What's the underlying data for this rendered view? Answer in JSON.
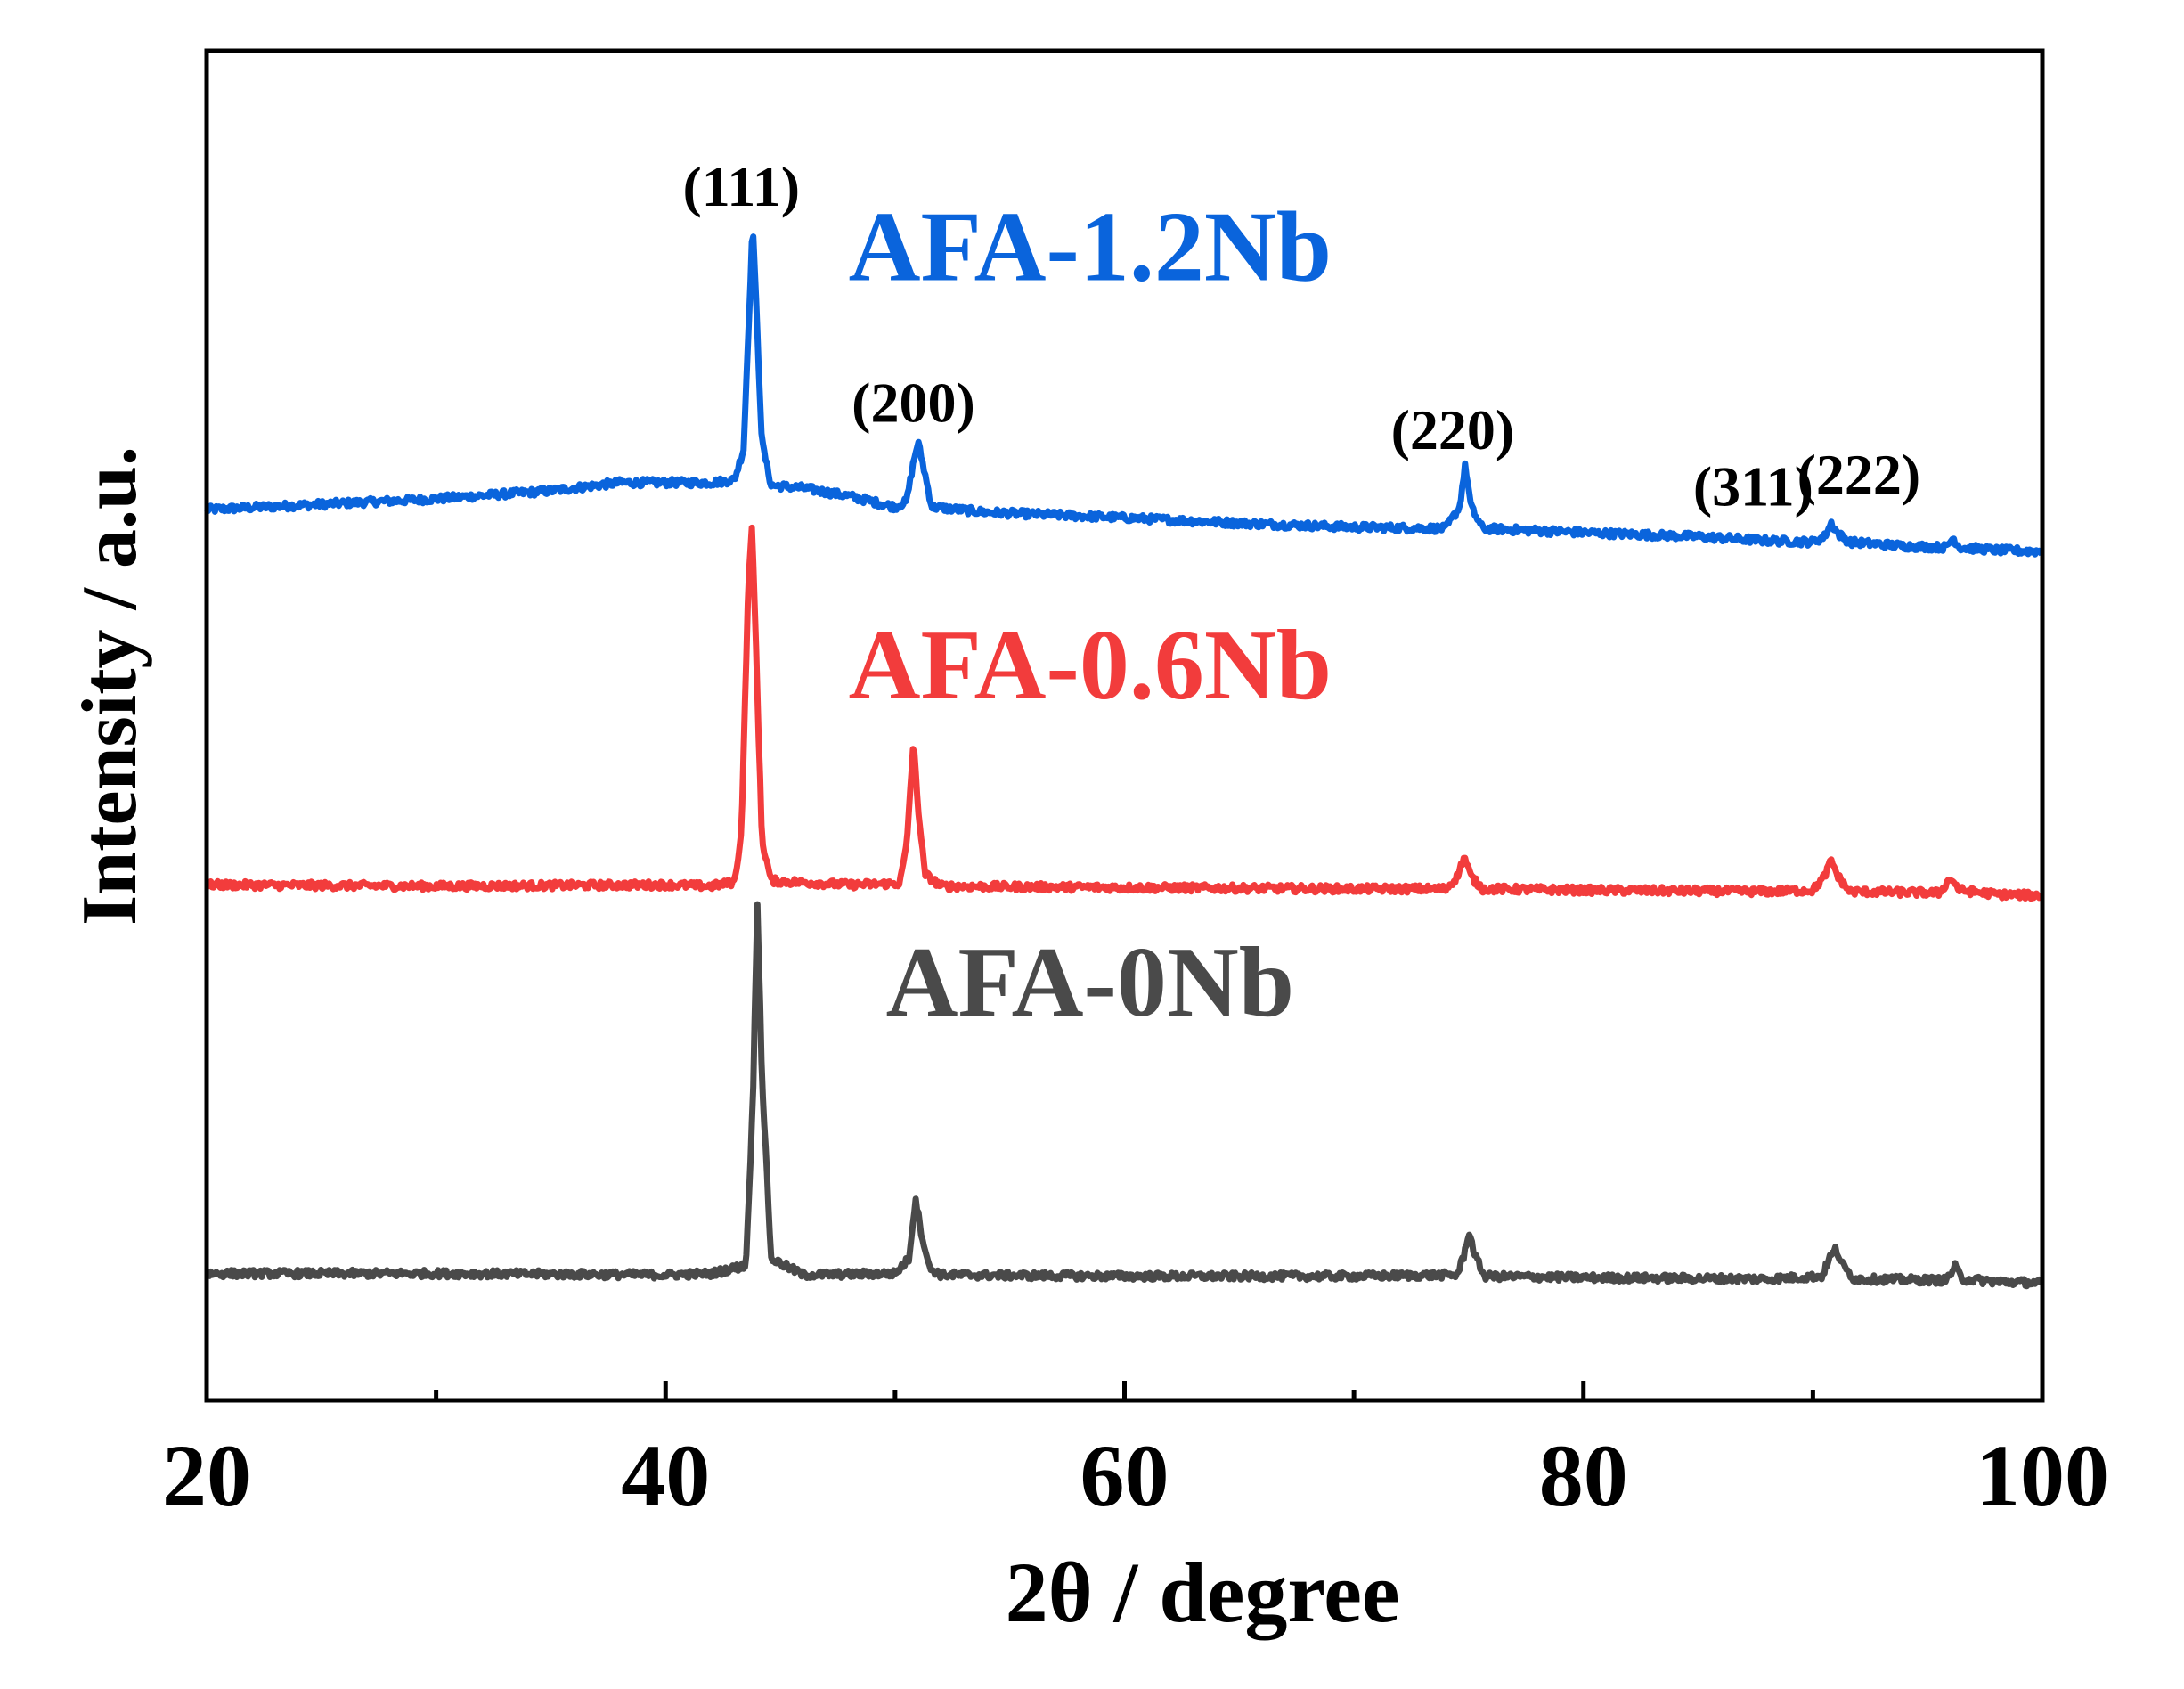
{
  "chart_data": {
    "type": "line",
    "title": "",
    "xlabel": "2θ / degree",
    "ylabel": "Intensity / a.u.",
    "xlim": [
      20,
      100
    ],
    "ylim": [
      0,
      100
    ],
    "x_ticks_major": [
      20,
      40,
      60,
      80,
      100
    ],
    "x_ticks_minor": [
      30,
      50,
      70,
      90
    ],
    "x_tick_labels": [
      "20",
      "40",
      "60",
      "80",
      "100"
    ],
    "y_ticks_shown": false,
    "grid": false,
    "legend": "inline labels",
    "series": [
      {
        "name": "AFA-1.2Nb",
        "color": "#0a64dc",
        "label_position": [
          58.5,
          83
        ],
        "points": [
          [
            20,
            66.0
          ],
          [
            25,
            66.4
          ],
          [
            30,
            66.8
          ],
          [
            35,
            67.4
          ],
          [
            38,
            68.0
          ],
          [
            40,
            68.0
          ],
          [
            42,
            68.0
          ],
          [
            43,
            68.2
          ],
          [
            43.4,
            70.5
          ],
          [
            43.65,
            81.0
          ],
          [
            43.8,
            87.3
          ],
          [
            43.95,
            81.0
          ],
          [
            44.2,
            71.0
          ],
          [
            44.6,
            67.8
          ],
          [
            46,
            67.6
          ],
          [
            48,
            67.0
          ],
          [
            50,
            66.2
          ],
          [
            50.5,
            66.6
          ],
          [
            50.8,
            69.5
          ],
          [
            51.0,
            71.0
          ],
          [
            51.2,
            69.5
          ],
          [
            51.6,
            66.2
          ],
          [
            54,
            65.8
          ],
          [
            60,
            65.4
          ],
          [
            65,
            65.0
          ],
          [
            70,
            64.7
          ],
          [
            74,
            64.6
          ],
          [
            74.6,
            66.2
          ],
          [
            74.85,
            69.3
          ],
          [
            75.1,
            66.2
          ],
          [
            75.6,
            64.6
          ],
          [
            80,
            64.3
          ],
          [
            85,
            64.0
          ],
          [
            88,
            63.7
          ],
          [
            90,
            63.6
          ],
          [
            90.5,
            64.0
          ],
          [
            90.8,
            65.0
          ],
          [
            91.1,
            64.2
          ],
          [
            91.6,
            63.6
          ],
          [
            94,
            63.3
          ],
          [
            95.8,
            63.2
          ],
          [
            96.1,
            63.9
          ],
          [
            96.4,
            63.2
          ],
          [
            98,
            63.0
          ],
          [
            100,
            62.9
          ]
        ]
      },
      {
        "name": "AFA-0.6Nb",
        "color": "#f23c3c",
        "label_position": [
          58.5,
          52
        ],
        "points": [
          [
            20,
            38.2
          ],
          [
            30,
            38.1
          ],
          [
            40,
            38.2
          ],
          [
            42,
            38.1
          ],
          [
            43,
            38.4
          ],
          [
            43.3,
            42.0
          ],
          [
            43.6,
            60.0
          ],
          [
            43.75,
            65.0
          ],
          [
            43.9,
            58.0
          ],
          [
            44.2,
            41.5
          ],
          [
            44.6,
            38.5
          ],
          [
            48,
            38.2
          ],
          [
            50.2,
            38.3
          ],
          [
            50.5,
            41.0
          ],
          [
            50.8,
            48.8
          ],
          [
            51.0,
            44.0
          ],
          [
            51.3,
            39.0
          ],
          [
            52,
            38.1
          ],
          [
            60,
            38.0
          ],
          [
            70,
            37.9
          ],
          [
            74,
            37.9
          ],
          [
            74.5,
            38.8
          ],
          [
            74.8,
            40.3
          ],
          [
            75.1,
            38.8
          ],
          [
            75.6,
            37.9
          ],
          [
            80,
            37.8
          ],
          [
            88,
            37.7
          ],
          [
            90,
            37.8
          ],
          [
            90.5,
            38.8
          ],
          [
            90.8,
            40.0
          ],
          [
            91.1,
            38.8
          ],
          [
            91.6,
            37.7
          ],
          [
            95.5,
            37.6
          ],
          [
            96,
            38.7
          ],
          [
            96.4,
            37.8
          ],
          [
            98,
            37.5
          ],
          [
            100,
            37.4
          ]
        ]
      },
      {
        "name": "AFA-0Nb",
        "color": "#4a4a4a",
        "label_position": [
          58.5,
          28.5
        ],
        "points": [
          [
            20,
            9.4
          ],
          [
            30,
            9.4
          ],
          [
            40,
            9.3
          ],
          [
            42,
            9.4
          ],
          [
            43.5,
            10.0
          ],
          [
            43.8,
            22.0
          ],
          [
            44.0,
            37.0
          ],
          [
            44.2,
            24.0
          ],
          [
            44.6,
            10.5
          ],
          [
            46,
            9.3
          ],
          [
            50,
            9.4
          ],
          [
            50.6,
            10.5
          ],
          [
            50.9,
            15.0
          ],
          [
            51.1,
            12.8
          ],
          [
            51.5,
            9.8
          ],
          [
            52,
            9.3
          ],
          [
            60,
            9.2
          ],
          [
            70,
            9.2
          ],
          [
            74.5,
            9.3
          ],
          [
            74.8,
            10.8
          ],
          [
            75.0,
            12.5
          ],
          [
            75.3,
            10.6
          ],
          [
            75.7,
            9.2
          ],
          [
            80,
            9.1
          ],
          [
            88,
            9.0
          ],
          [
            90.4,
            9.2
          ],
          [
            90.7,
            10.5
          ],
          [
            91.0,
            11.2
          ],
          [
            91.3,
            10.0
          ],
          [
            91.8,
            9.0
          ],
          [
            95.8,
            8.9
          ],
          [
            96.2,
            9.9
          ],
          [
            96.5,
            9.0
          ],
          [
            98,
            8.8
          ],
          [
            100,
            8.7
          ]
        ]
      }
    ],
    "annotations": [
      {
        "text": "(111)",
        "x": 43.3,
        "y": 88.5
      },
      {
        "text": "(200)",
        "x": 50.8,
        "y": 72.5
      },
      {
        "text": "(220)",
        "x": 74.3,
        "y": 70.5
      },
      {
        "text": "(311)",
        "x": 87.4,
        "y": 66.3
      },
      {
        "text": "(222)",
        "x": 92.0,
        "y": 67.2
      }
    ]
  }
}
